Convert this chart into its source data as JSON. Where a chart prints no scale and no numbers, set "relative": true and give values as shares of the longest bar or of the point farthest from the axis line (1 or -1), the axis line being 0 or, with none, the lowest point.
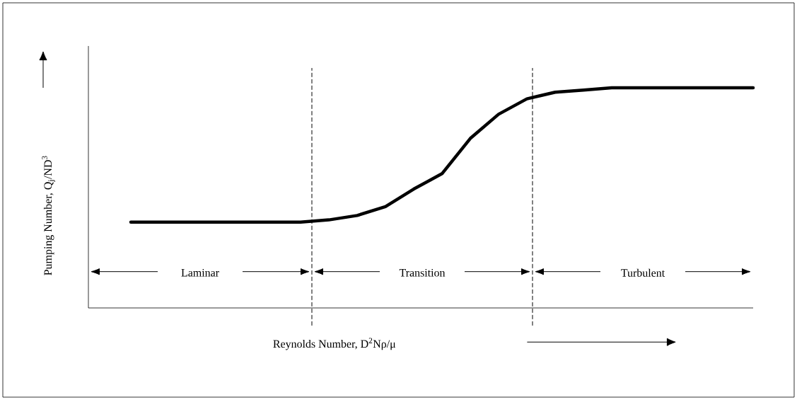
{
  "chart_data": {
    "type": "line",
    "relative": true,
    "xlabel": "Reynolds Number, D$^{2}$Nρ/μ",
    "ylabel": "Pumping Number, Q$_{j}$/ND$^{3}$",
    "categories": [
      null,
      null,
      null,
      null,
      null,
      null,
      null,
      null,
      null,
      null,
      null,
      null,
      null,
      null,
      null,
      null,
      null,
      null,
      null,
      null,
      null,
      null,
      null
    ],
    "series": [
      {
        "color": "#000000",
        "line_style": "solid",
        "values": [
          0.39,
          0.39,
          0.39,
          0.39,
          0.39,
          0.39,
          0.39,
          0.4,
          0.42,
          0.46,
          0.54,
          0.61,
          0.77,
          0.88,
          0.95,
          0.98,
          0.99,
          1.0,
          1.0,
          1.0,
          1.0,
          1.0,
          1.0
        ]
      }
    ],
    "annotations": [
      "Laminar",
      "Transition",
      "Turbulent"
    ]
  }
}
